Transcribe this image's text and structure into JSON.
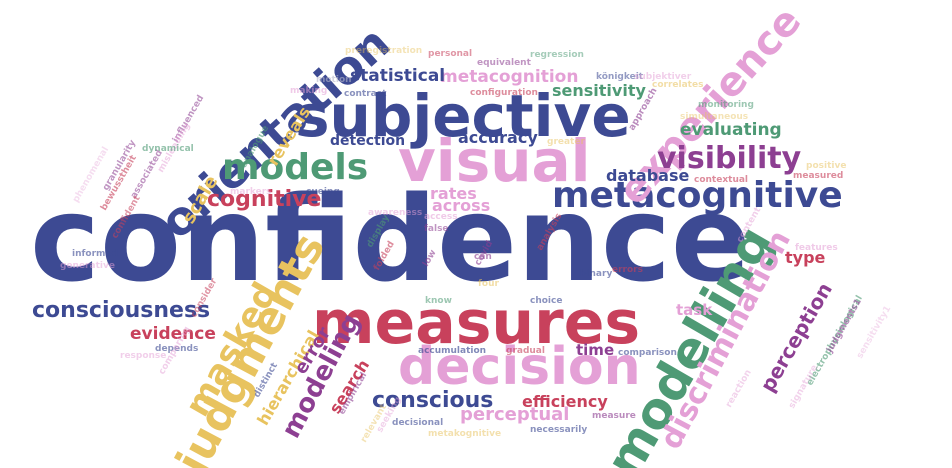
{
  "words": [
    {
      "text": "confidence",
      "color": "#3d4a93"
    },
    {
      "text": "measures",
      "color": "#c8415c"
    },
    {
      "text": "subjective",
      "color": "#3d4a93"
    },
    {
      "text": "visual",
      "color": "#e4a0d6"
    },
    {
      "text": "decision",
      "color": "#e4a0d6"
    },
    {
      "text": "metacognitive",
      "color": "#3d4a93"
    },
    {
      "text": "modelling",
      "color": "#4e9a75"
    },
    {
      "text": "orientation",
      "color": "#3d4a93"
    },
    {
      "text": "experience",
      "color": "#e4a0d6"
    },
    {
      "text": "judgments",
      "color": "#e8c35f"
    },
    {
      "text": "models",
      "color": "#4e9a75"
    },
    {
      "text": "visibility",
      "color": "#8d3f92"
    },
    {
      "text": "masked",
      "color": "#e8c35f"
    },
    {
      "text": "discrimination",
      "color": "#e4a0d6"
    },
    {
      "text": "consciousness",
      "color": "#3d4a93"
    },
    {
      "text": "conscious",
      "color": "#3d4a93"
    },
    {
      "text": "cognitive",
      "color": "#c8415c"
    },
    {
      "text": "metacognition",
      "color": "#e4a0d6"
    },
    {
      "text": "statistical",
      "color": "#3d4a93"
    },
    {
      "text": "perceptual",
      "color": "#e4a0d6"
    },
    {
      "text": "modeling",
      "color": "#8d3f92"
    },
    {
      "text": "sensitivity",
      "color": "#4e9a75"
    },
    {
      "text": "evaluating",
      "color": "#4e9a75"
    },
    {
      "text": "database",
      "color": "#3d4a93"
    },
    {
      "text": "perception",
      "color": "#8d3f92"
    },
    {
      "text": "hierarchical",
      "color": "#e8c35f"
    },
    {
      "text": "accuracy",
      "color": "#3d4a93"
    },
    {
      "text": "across",
      "color": "#e4a0d6"
    },
    {
      "text": "efficiency",
      "color": "#c8415c"
    },
    {
      "text": "evidence",
      "color": "#c8415c"
    },
    {
      "text": "reveals",
      "color": "#e8c35f"
    },
    {
      "text": "scale",
      "color": "#e8c35f"
    },
    {
      "text": "rates",
      "color": "#e4a0d6"
    },
    {
      "text": "error",
      "color": "#8d3f92"
    },
    {
      "text": "search",
      "color": "#c8415c"
    },
    {
      "text": "detection",
      "color": "#3d4a93"
    },
    {
      "text": "type",
      "color": "#c8415c"
    },
    {
      "text": "task",
      "color": "#e4a0d6"
    },
    {
      "text": "time",
      "color": "#8d3f92"
    },
    {
      "text": "motion",
      "color": "#b8b8cc"
    },
    {
      "text": "making",
      "color": "#e4a0d6"
    },
    {
      "text": "preregistration",
      "color": "#e8c35f"
    },
    {
      "text": "personal",
      "color": "#c8415c"
    },
    {
      "text": "equivalent",
      "color": "#8d3f92"
    },
    {
      "text": "regression",
      "color": "#4e9a75"
    },
    {
      "text": "königkeit",
      "color": "#3d4a93"
    },
    {
      "text": "subjektiver",
      "color": "#e4a0d6"
    },
    {
      "text": "configuration",
      "color": "#c8415c"
    },
    {
      "text": "correlates",
      "color": "#e8c35f"
    },
    {
      "text": "monitoring",
      "color": "#4e9a75"
    },
    {
      "text": "simultaneous",
      "color": "#e8c35f"
    },
    {
      "text": "approach",
      "color": "#8d3f92"
    },
    {
      "text": "influenced",
      "color": "#8d3f92"
    },
    {
      "text": "misleading",
      "color": "#e4a0d6"
    },
    {
      "text": "granularity",
      "color": "#8d3f92"
    },
    {
      "text": "associated",
      "color": "#8d3f92"
    },
    {
      "text": "phenomenal",
      "color": "#e4a0d6"
    },
    {
      "text": "dynamical",
      "color": "#4e9a75"
    },
    {
      "text": "analogue",
      "color": "#4e9a75"
    },
    {
      "text": "bewusstheit",
      "color": "#c8415c"
    },
    {
      "text": "confident",
      "color": "#c8415c"
    },
    {
      "text": "contrast",
      "color": "#3d4a93"
    },
    {
      "text": "markers",
      "color": "#e4a0d6"
    },
    {
      "text": "cueing",
      "color": "#3d4a93"
    },
    {
      "text": "awareness",
      "color": "#e4a0d6"
    },
    {
      "text": "access",
      "color": "#e4a0d6"
    },
    {
      "text": "false",
      "color": "#8d3f92"
    },
    {
      "text": "contextual",
      "color": "#c8415c"
    },
    {
      "text": "measured",
      "color": "#c8415c"
    },
    {
      "text": "positive",
      "color": "#e8c35f"
    },
    {
      "text": "content",
      "color": "#e4a0d6"
    },
    {
      "text": "features",
      "color": "#e4a0d6"
    },
    {
      "text": "informed",
      "color": "#3d4a93"
    },
    {
      "text": "generative",
      "color": "#e4a0d6"
    },
    {
      "text": "display",
      "color": "#4e9a75"
    },
    {
      "text": "folded",
      "color": "#c8415c"
    },
    {
      "text": "low",
      "color": "#8d3f92"
    },
    {
      "text": "can",
      "color": "#8d3f92"
    },
    {
      "text": "covid",
      "color": "#8d3f92"
    },
    {
      "text": "four",
      "color": "#e8c35f"
    },
    {
      "text": "analysis",
      "color": "#c8415c"
    },
    {
      "text": "binary",
      "color": "#3d4a93"
    },
    {
      "text": "errors",
      "color": "#c8415c"
    },
    {
      "text": "choice",
      "color": "#3d4a93"
    },
    {
      "text": "know",
      "color": "#4e9a75"
    },
    {
      "text": "consider",
      "color": "#c8415c"
    },
    {
      "text": "depends",
      "color": "#3d4a93"
    },
    {
      "text": "response",
      "color": "#e4a0d6"
    },
    {
      "text": "comparing",
      "color": "#e4a0d6"
    },
    {
      "text": "accumulation",
      "color": "#3d4a93"
    },
    {
      "text": "gradual",
      "color": "#c8415c"
    },
    {
      "text": "comparison",
      "color": "#3d4a93"
    },
    {
      "text": "electrophysiological",
      "color": "#4e9a75"
    },
    {
      "text": "judgments1",
      "color": "#8d3f92"
    },
    {
      "text": "sensitivity1",
      "color": "#e4a0d6"
    },
    {
      "text": "distinct",
      "color": "#3d4a93"
    },
    {
      "text": "empirical",
      "color": "#8d3f92"
    },
    {
      "text": "relevant",
      "color": "#e8c35f"
    },
    {
      "text": "seeking",
      "color": "#e4a0d6"
    },
    {
      "text": "decisional",
      "color": "#3d4a93"
    },
    {
      "text": "measure",
      "color": "#8d3f92"
    },
    {
      "text": "necessarily",
      "color": "#3d4a93"
    },
    {
      "text": "metakognitive",
      "color": "#e8c35f"
    },
    {
      "text": "greater",
      "color": "#e8c35f"
    },
    {
      "text": "reaction",
      "color": "#e4a0d6"
    },
    {
      "text": "signature",
      "color": "#e4a0d6"
    }
  ]
}
